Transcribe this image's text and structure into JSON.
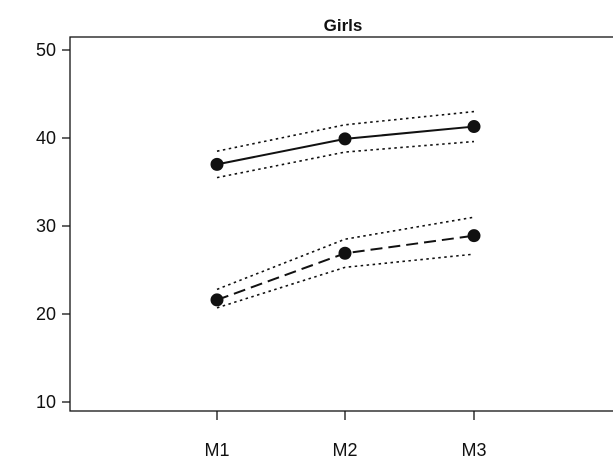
{
  "chart_data": {
    "type": "line",
    "title": "Girls",
    "categories": [
      "M1",
      "M2",
      "M3"
    ],
    "ylim": [
      10,
      50
    ],
    "yticks": [
      10,
      20,
      30,
      40,
      50
    ],
    "grid": false,
    "legend": "none",
    "series": [
      {
        "style": "solid",
        "values": [
          37,
          39.9,
          41.3
        ]
      },
      {
        "style": "dotted",
        "role": "upper band",
        "values": [
          38.5,
          41.5,
          43
        ]
      },
      {
        "style": "dotted",
        "role": "lower band",
        "values": [
          35.5,
          38.4,
          39.6
        ]
      },
      {
        "style": "dashed",
        "values": [
          21.6,
          26.9,
          28.9
        ]
      },
      {
        "style": "dotted",
        "role": "upper band",
        "values": [
          22.8,
          28.5,
          31
        ]
      },
      {
        "style": "dotted",
        "role": "lower band",
        "values": [
          20.7,
          25.3,
          26.8
        ]
      }
    ],
    "colors": {
      "line": "#111111",
      "background": "#ffffff"
    }
  }
}
